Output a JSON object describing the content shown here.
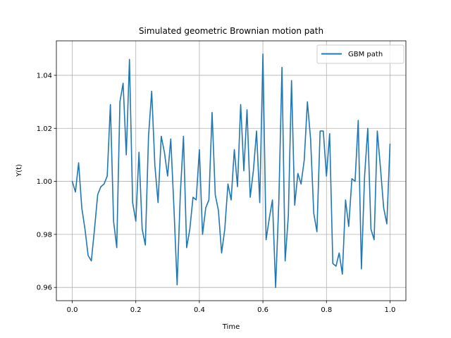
{
  "chart_data": {
    "type": "line",
    "title": "Simulated geometric Brownian motion path",
    "xlabel": "Time",
    "ylabel": "Y(t)",
    "xlim": [
      -0.05,
      1.05
    ],
    "ylim": [
      0.955,
      1.053
    ],
    "xticks": [
      0.0,
      0.2,
      0.4,
      0.6,
      0.8,
      1.0
    ],
    "xtick_labels": [
      "0.0",
      "0.2",
      "0.4",
      "0.6",
      "0.8",
      "1.0"
    ],
    "yticks": [
      0.96,
      0.98,
      1.0,
      1.02,
      1.04
    ],
    "ytick_labels": [
      "0.96",
      "0.98",
      "1.00",
      "1.02",
      "1.04"
    ],
    "grid": true,
    "legend_position": "top-right",
    "series": [
      {
        "name": "GBM path",
        "color": "#1f77b4",
        "x": [
          0.0,
          0.01,
          0.02,
          0.03,
          0.04,
          0.05,
          0.06,
          0.07,
          0.08,
          0.09,
          0.1,
          0.11,
          0.12,
          0.13,
          0.14,
          0.15,
          0.16,
          0.17,
          0.18,
          0.19,
          0.2,
          0.21,
          0.22,
          0.23,
          0.24,
          0.25,
          0.26,
          0.27,
          0.28,
          0.29,
          0.3,
          0.31,
          0.32,
          0.33,
          0.34,
          0.35,
          0.36,
          0.37,
          0.38,
          0.39,
          0.4,
          0.41,
          0.42,
          0.43,
          0.44,
          0.45,
          0.46,
          0.47,
          0.48,
          0.49,
          0.5,
          0.51,
          0.52,
          0.53,
          0.54,
          0.55,
          0.56,
          0.57,
          0.58,
          0.59,
          0.6,
          0.61,
          0.62,
          0.63,
          0.64,
          0.65,
          0.66,
          0.67,
          0.68,
          0.69,
          0.7,
          0.71,
          0.72,
          0.73,
          0.74,
          0.75,
          0.76,
          0.77,
          0.78,
          0.79,
          0.8,
          0.81,
          0.82,
          0.83,
          0.84,
          0.85,
          0.86,
          0.87,
          0.88,
          0.89,
          0.9,
          0.91,
          0.92,
          0.93,
          0.94,
          0.95,
          0.96,
          0.97,
          0.98,
          0.99,
          1.0
        ],
        "values": [
          1.0,
          0.996,
          1.007,
          0.99,
          0.982,
          0.972,
          0.97,
          0.982,
          0.995,
          0.998,
          0.999,
          1.002,
          1.029,
          0.985,
          0.975,
          1.03,
          1.037,
          1.01,
          1.046,
          0.992,
          0.985,
          1.011,
          0.982,
          0.976,
          1.017,
          1.034,
          1.006,
          0.992,
          1.017,
          1.011,
          1.002,
          1.016,
          0.99,
          0.961,
          0.995,
          1.017,
          0.975,
          0.982,
          0.994,
          0.993,
          1.012,
          0.98,
          0.99,
          0.993,
          1.026,
          0.995,
          0.989,
          0.973,
          0.982,
          0.999,
          0.993,
          1.012,
          0.998,
          1.029,
          1.004,
          1.027,
          0.994,
          1.004,
          1.019,
          0.992,
          1.048,
          0.978,
          0.986,
          0.993,
          0.96,
          0.992,
          1.043,
          0.97,
          0.987,
          1.038,
          0.991,
          1.003,
          0.999,
          1.008,
          1.03,
          1.016,
          0.988,
          0.981,
          1.019,
          1.019,
          1.002,
          1.018,
          0.969,
          0.968,
          0.973,
          0.965,
          0.993,
          0.983,
          1.001,
          1.0,
          1.023,
          0.967,
          1.002,
          1.02,
          0.982,
          0.978,
          1.019,
          1.005,
          0.99,
          0.984,
          1.014
        ]
      }
    ]
  }
}
